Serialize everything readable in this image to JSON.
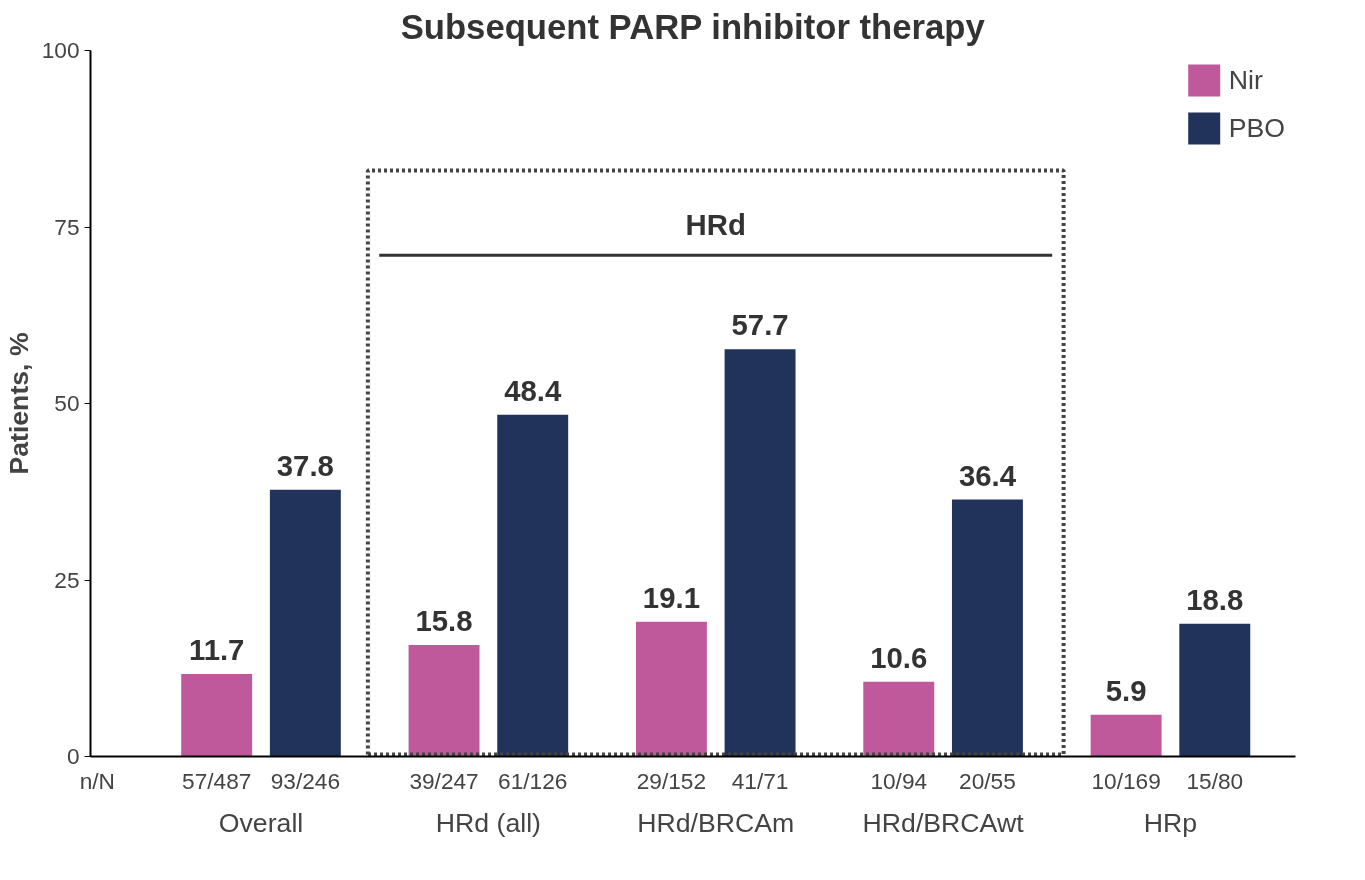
{
  "chart_data": {
    "type": "bar",
    "title": "Subsequent PARP inhibitor therapy",
    "ylabel": "Patients, %",
    "categories": [
      "Overall",
      "HRd (all)",
      "HRd/BRCAm",
      "HRd/BRCAwt",
      "HRp"
    ],
    "series": [
      {
        "name": "Nir",
        "color": "#c0599c",
        "values": [
          11.7,
          15.8,
          19.1,
          10.6,
          5.9
        ]
      },
      {
        "name": "PBO",
        "color": "#22335b",
        "values": [
          37.8,
          48.4,
          57.7,
          36.4,
          18.8
        ]
      }
    ],
    "ylim": [
      0,
      100
    ],
    "yticks": [
      0,
      25,
      50,
      75,
      100
    ],
    "grid": false,
    "legend": "top right",
    "data_labels": true,
    "annotations": [
      "n/N",
      "57/487",
      "93/246",
      "39/247",
      "61/126",
      "29/152",
      "41/71",
      "10/94",
      "20/55",
      "10/169",
      "15/80"
    ],
    "ref_lines": [
      {
        "axis": "y",
        "value": 71,
        "label": "HRd",
        "color": "#333333"
      }
    ]
  }
}
